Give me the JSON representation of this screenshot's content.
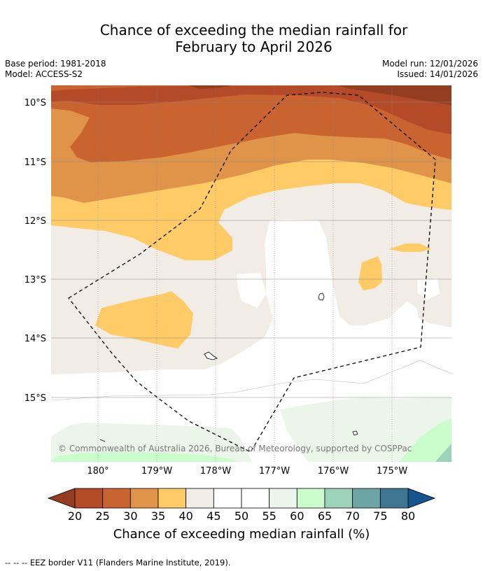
{
  "title": {
    "line1": "Chance of exceeding the median rainfall for",
    "line2": "February to April 2026"
  },
  "meta": {
    "base_period": "Base period: 1981-2018",
    "model": "Model: ACCESS-S2",
    "model_run": "Model run: 12/01/2026",
    "issued": "Issued: 14/01/2026"
  },
  "map": {
    "lat_labels": [
      "10°S",
      "11°S",
      "12°S",
      "13°S",
      "14°S",
      "15°S"
    ],
    "lon_labels": [
      "180°",
      "179°W",
      "178°W",
      "177°W",
      "176°W",
      "175°W"
    ],
    "copyright": "© Commonwealth of Australia 2026, Bureau of Meteorology, supported by COSPPac"
  },
  "colorbar": {
    "ticks": [
      "20",
      "25",
      "30",
      "35",
      "40",
      "45",
      "50",
      "55",
      "60",
      "65",
      "70",
      "75",
      "80"
    ],
    "colors": [
      "#b44a27",
      "#c9632f",
      "#e0944a",
      "#fecb66",
      "#f1ece6",
      "#ffffff",
      "#ffffff",
      "#ebf5ea",
      "#cbfdcc",
      "#9dd2bb",
      "#6ea5a4",
      "#3f7793"
    ],
    "low_color": "#933e21",
    "high_color": "#17548e",
    "label": "Chance of exceeding median rainfall (%)"
  },
  "footer": "--  --  -- EEZ border V11 (Flanders Marine Institute, 2019)."
}
